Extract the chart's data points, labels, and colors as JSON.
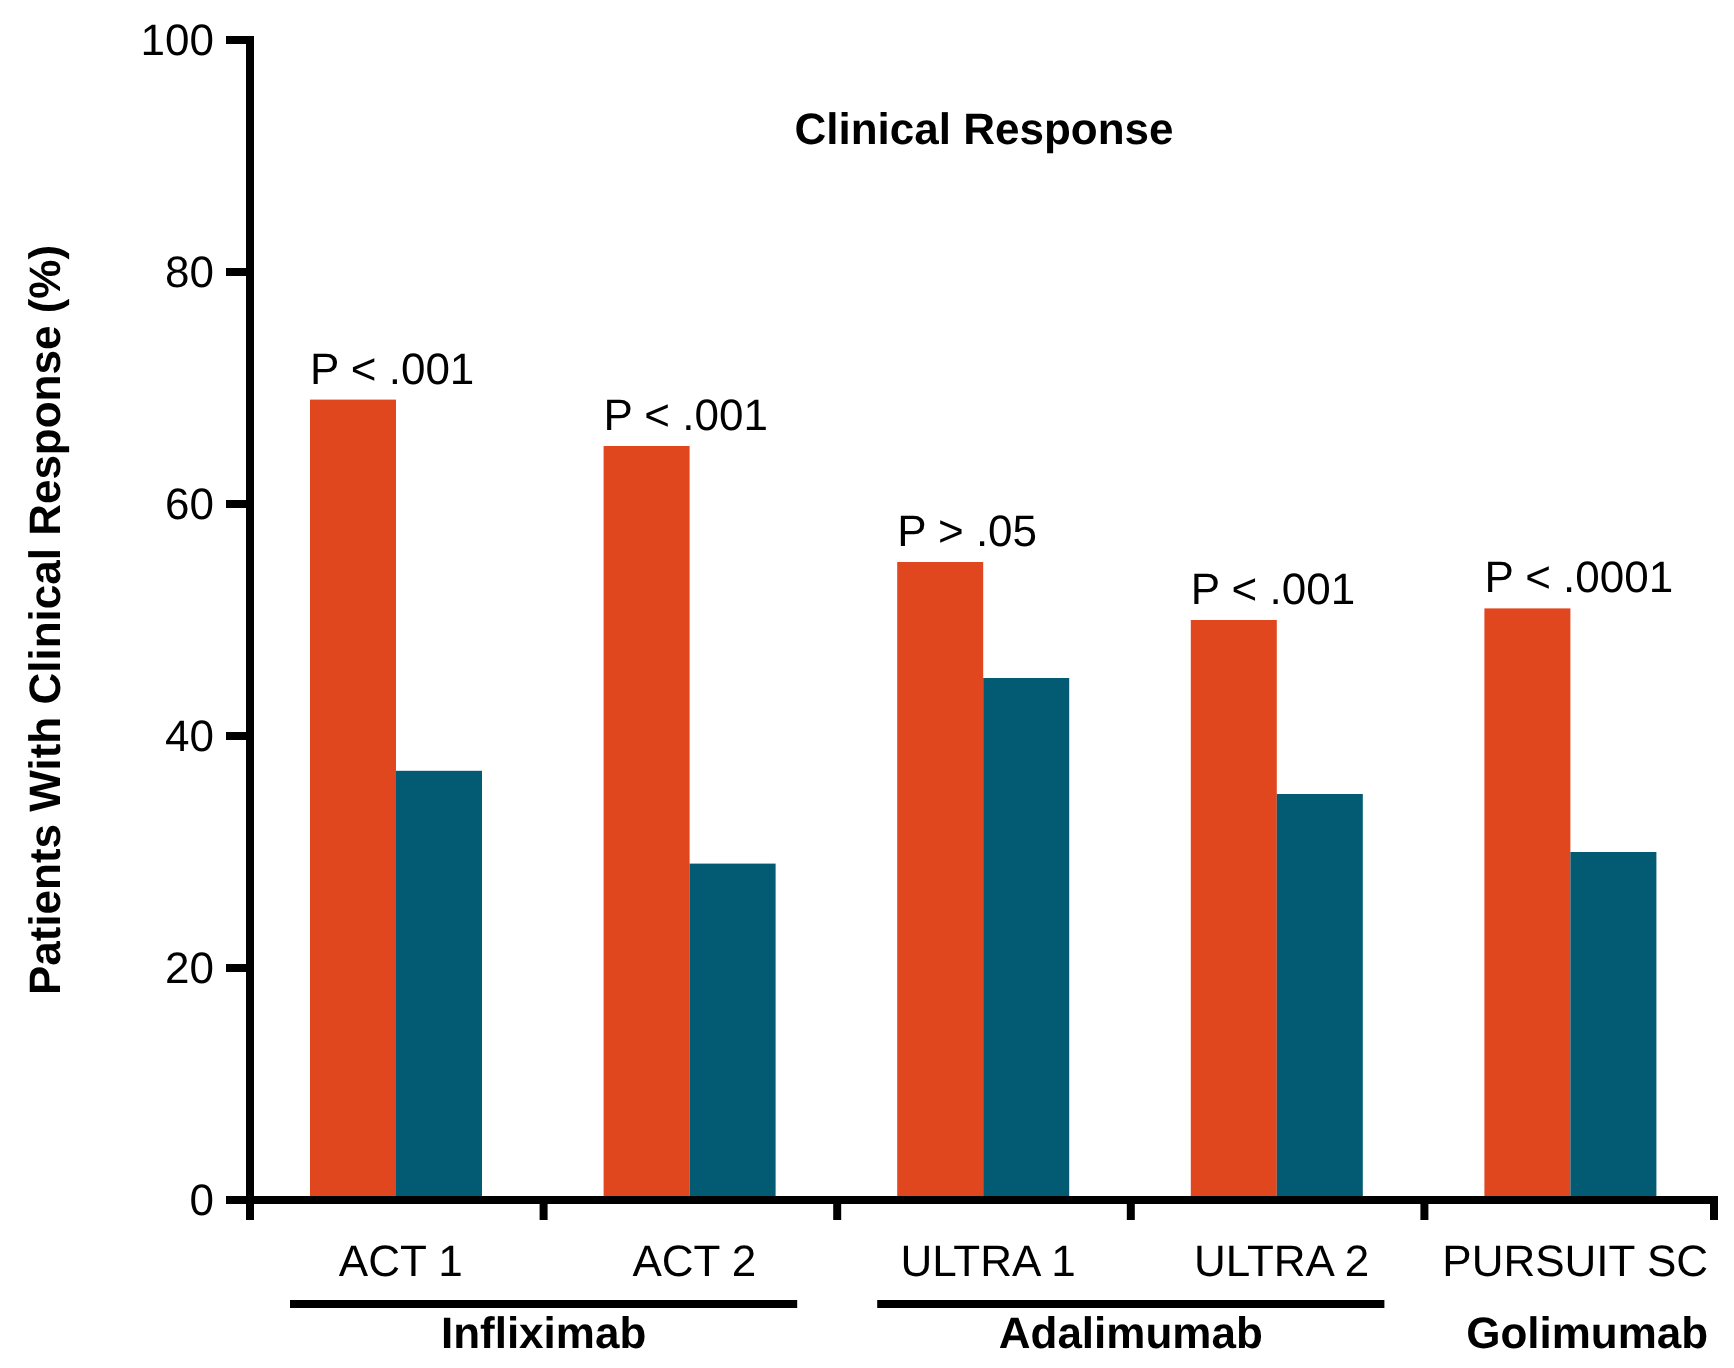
{
  "chart_data": {
    "type": "bar",
    "title": "Clinical Response",
    "ylabel": "Patients With Clinical Response (%)",
    "categories": [
      "ACT 1",
      "ACT 2",
      "ULTRA 1",
      "ULTRA 2",
      "PURSUIT SC"
    ],
    "series": [
      {
        "color": "#e0471e",
        "values": [
          69,
          65,
          55,
          50,
          51
        ]
      },
      {
        "color": "#025a73",
        "values": [
          37,
          29,
          45,
          35,
          30
        ]
      }
    ],
    "ylim": [
      0,
      100
    ],
    "yticks": [
      0,
      20,
      40,
      60,
      80,
      100
    ],
    "grid": false,
    "annotations": [
      {
        "text": "P < .001",
        "x": "ACT 1",
        "y": 69
      },
      {
        "text": "P < .001",
        "x": "ACT 2",
        "y": 65
      },
      {
        "text": "P > .05",
        "x": "ULTRA 1",
        "y": 55
      },
      {
        "text": "P < .001",
        "x": "ULTRA 2",
        "y": 50
      },
      {
        "text": "P < .0001",
        "x": "PURSUIT SC",
        "y": 51
      },
      "Infliximab",
      "Adalimumab",
      "Golimumab"
    ]
  }
}
